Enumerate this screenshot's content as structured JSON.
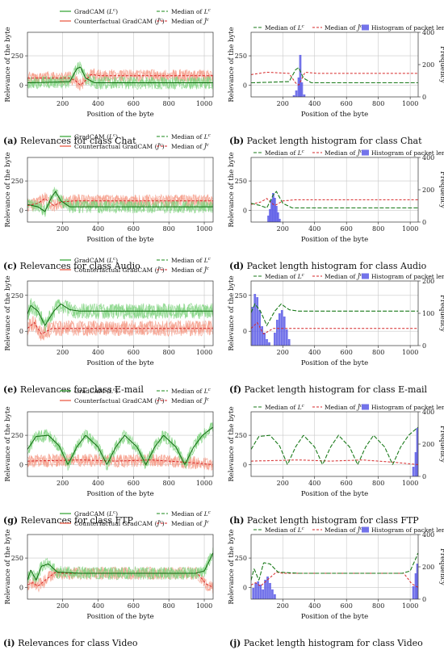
{
  "colors": {
    "gradcam": "#2ca02c",
    "gradcam_band": "#7fd37f",
    "counterfactual": "#e8503a",
    "counterfactual_band": "#f59a86",
    "median_green": "#1a8a1a",
    "median_red": "#d62728",
    "histogram": "#5b5be6",
    "grid": "#c8c8c8"
  },
  "legend": {
    "gradcam": "GradCAM (L^c)",
    "counterfactual": "Counterfactual GradCAM (Ĵ^c)",
    "median_lc": "Median of L^c",
    "median_hat": "Median of Ĵ^c",
    "histogram": "Histogram of packet length"
  },
  "axes": {
    "xlabel": "Position of the byte",
    "ylabel": "Relevance of the byte",
    "y2label": "Frequency"
  },
  "captions": [
    {
      "id": "a",
      "letter": "(a)",
      "text": " Relevances for class Chat"
    },
    {
      "id": "b",
      "letter": "(b)",
      "text": " Packet length histogram for class Chat"
    },
    {
      "id": "c",
      "letter": "(c)",
      "text": " Relevances for class Audio"
    },
    {
      "id": "d",
      "letter": "(d)",
      "text": " Packet length histogram for class Audio"
    },
    {
      "id": "e",
      "letter": "(e)",
      "text": " Relevances for class E-mail"
    },
    {
      "id": "f",
      "letter": "(f)",
      "text": " Packet length histogram for class E-mail"
    },
    {
      "id": "g",
      "letter": "(g)",
      "text": " Relevances for class FTP"
    },
    {
      "id": "h",
      "letter": "(h)",
      "text": " Packet length histogram for class FTP"
    },
    {
      "id": "i",
      "letter": "(i)",
      "text": " Relevances for class Video"
    },
    {
      "id": "j",
      "letter": "(j)",
      "text": " Packet length histogram for class Video"
    }
  ],
  "chart_data": [
    {
      "id": "a",
      "type": "line",
      "class": "Chat",
      "xlim": [
        1,
        1050
      ],
      "ylim": [
        -100,
        450
      ],
      "xticks": [
        200,
        400,
        600,
        800,
        1000
      ],
      "yticks": [
        0,
        250
      ],
      "gradcam_median": [
        [
          1,
          20
        ],
        [
          150,
          25
        ],
        [
          240,
          30
        ],
        [
          280,
          140
        ],
        [
          300,
          155
        ],
        [
          330,
          60
        ],
        [
          380,
          20
        ],
        [
          1050,
          20
        ]
      ],
      "counterfactual_median": [
        [
          1,
          60
        ],
        [
          240,
          60
        ],
        [
          270,
          40
        ],
        [
          300,
          0
        ],
        [
          330,
          40
        ],
        [
          360,
          90
        ],
        [
          420,
          80
        ],
        [
          1050,
          80
        ]
      ]
    },
    {
      "id": "b",
      "type": "histogram",
      "class": "Chat",
      "xlim": [
        1,
        1050
      ],
      "ylim": [
        -100,
        450
      ],
      "y2lim": [
        0,
        400
      ],
      "xticks": [
        200,
        400,
        600,
        800,
        1000
      ],
      "yticks": [
        0,
        250
      ],
      "y2ticks": [
        0,
        200,
        400
      ],
      "bins": [
        [
          270,
          10
        ],
        [
          285,
          40
        ],
        [
          300,
          120
        ],
        [
          310,
          260
        ],
        [
          320,
          90
        ],
        [
          335,
          15
        ]
      ],
      "median_lc": [
        [
          1,
          20
        ],
        [
          240,
          30
        ],
        [
          280,
          130
        ],
        [
          300,
          150
        ],
        [
          330,
          60
        ],
        [
          380,
          20
        ],
        [
          1050,
          20
        ]
      ],
      "median_hat": [
        [
          1,
          90
        ],
        [
          100,
          110
        ],
        [
          240,
          100
        ],
        [
          280,
          20
        ],
        [
          300,
          0
        ],
        [
          340,
          110
        ],
        [
          420,
          100
        ],
        [
          1050,
          100
        ]
      ]
    },
    {
      "id": "c",
      "type": "line",
      "class": "Audio",
      "xlim": [
        1,
        1050
      ],
      "ylim": [
        -100,
        450
      ],
      "xticks": [
        200,
        400,
        600,
        800,
        1000
      ],
      "yticks": [
        0,
        250
      ],
      "gradcam_median": [
        [
          1,
          50
        ],
        [
          60,
          30
        ],
        [
          100,
          -10
        ],
        [
          140,
          120
        ],
        [
          160,
          160
        ],
        [
          190,
          80
        ],
        [
          240,
          30
        ],
        [
          1050,
          30
        ]
      ],
      "counterfactual_median": [
        [
          1,
          40
        ],
        [
          60,
          60
        ],
        [
          100,
          100
        ],
        [
          150,
          40
        ],
        [
          190,
          70
        ],
        [
          260,
          80
        ],
        [
          1050,
          80
        ]
      ]
    },
    {
      "id": "d",
      "type": "histogram",
      "class": "Audio",
      "xlim": [
        1,
        1050
      ],
      "ylim": [
        -100,
        450
      ],
      "y2lim": [
        0,
        400
      ],
      "xticks": [
        200,
        400,
        600,
        800,
        1000
      ],
      "yticks": [
        0,
        250
      ],
      "y2ticks": [
        0,
        200,
        400
      ],
      "bins": [
        [
          110,
          40
        ],
        [
          120,
          80
        ],
        [
          130,
          140
        ],
        [
          140,
          180
        ],
        [
          150,
          150
        ],
        [
          160,
          100
        ],
        [
          170,
          60
        ],
        [
          180,
          20
        ]
      ],
      "median_lc": [
        [
          1,
          60
        ],
        [
          60,
          40
        ],
        [
          100,
          20
        ],
        [
          140,
          130
        ],
        [
          160,
          160
        ],
        [
          200,
          60
        ],
        [
          260,
          20
        ],
        [
          1050,
          20
        ]
      ],
      "median_hat": [
        [
          1,
          50
        ],
        [
          60,
          70
        ],
        [
          100,
          100
        ],
        [
          150,
          40
        ],
        [
          200,
          80
        ],
        [
          280,
          90
        ],
        [
          1050,
          90
        ]
      ]
    },
    {
      "id": "e",
      "type": "line",
      "class": "E-mail",
      "xlim": [
        1,
        1050
      ],
      "ylim": [
        -100,
        350
      ],
      "xticks": [
        200,
        400,
        600,
        800,
        1000
      ],
      "yticks": [
        0,
        250
      ],
      "gradcam_median": [
        [
          1,
          120
        ],
        [
          20,
          180
        ],
        [
          60,
          140
        ],
        [
          100,
          40
        ],
        [
          150,
          140
        ],
        [
          190,
          190
        ],
        [
          240,
          150
        ],
        [
          300,
          140
        ],
        [
          1050,
          140
        ]
      ],
      "counterfactual_median": [
        [
          1,
          20
        ],
        [
          40,
          60
        ],
        [
          80,
          -20
        ],
        [
          140,
          20
        ],
        [
          200,
          20
        ],
        [
          1050,
          20
        ]
      ]
    },
    {
      "id": "f",
      "type": "histogram",
      "class": "E-mail",
      "xlim": [
        1,
        1050
      ],
      "ylim": [
        -100,
        350
      ],
      "y2lim": [
        0,
        200
      ],
      "xticks": [
        200,
        400,
        600,
        800,
        1000
      ],
      "yticks": [
        0,
        250
      ],
      "y2ticks": [
        0,
        100,
        200
      ],
      "bins": [
        [
          10,
          120
        ],
        [
          25,
          160
        ],
        [
          40,
          150
        ],
        [
          55,
          110
        ],
        [
          70,
          60
        ],
        [
          85,
          40
        ],
        [
          100,
          20
        ],
        [
          115,
          10
        ],
        [
          150,
          40
        ],
        [
          165,
          80
        ],
        [
          180,
          100
        ],
        [
          195,
          110
        ],
        [
          210,
          90
        ],
        [
          225,
          50
        ],
        [
          240,
          20
        ]
      ],
      "median_lc": [
        [
          1,
          130
        ],
        [
          25,
          190
        ],
        [
          60,
          140
        ],
        [
          100,
          40
        ],
        [
          150,
          140
        ],
        [
          190,
          190
        ],
        [
          240,
          150
        ],
        [
          300,
          140
        ],
        [
          1050,
          140
        ]
      ],
      "median_hat": [
        [
          1,
          20
        ],
        [
          40,
          60
        ],
        [
          80,
          -20
        ],
        [
          140,
          20
        ],
        [
          200,
          20
        ],
        [
          1050,
          20
        ]
      ]
    },
    {
      "id": "g",
      "type": "line",
      "class": "FTP",
      "xlim": [
        1,
        1050
      ],
      "ylim": [
        -100,
        450
      ],
      "xticks": [
        200,
        400,
        600,
        800,
        1000
      ],
      "yticks": [
        0,
        250
      ],
      "gradcam_median": [
        [
          1,
          130
        ],
        [
          50,
          240
        ],
        [
          120,
          250
        ],
        [
          180,
          160
        ],
        [
          230,
          0
        ],
        [
          280,
          150
        ],
        [
          330,
          250
        ],
        [
          400,
          150
        ],
        [
          450,
          0
        ],
        [
          500,
          150
        ],
        [
          550,
          250
        ],
        [
          620,
          150
        ],
        [
          670,
          0
        ],
        [
          720,
          150
        ],
        [
          770,
          250
        ],
        [
          840,
          150
        ],
        [
          890,
          0
        ],
        [
          940,
          150
        ],
        [
          990,
          250
        ],
        [
          1050,
          320
        ]
      ],
      "counterfactual_median": [
        [
          1,
          30
        ],
        [
          300,
          40
        ],
        [
          500,
          30
        ],
        [
          700,
          40
        ],
        [
          900,
          20
        ],
        [
          1050,
          0
        ]
      ]
    },
    {
      "id": "h",
      "type": "histogram",
      "class": "FTP",
      "xlim": [
        1,
        1050
      ],
      "ylim": [
        -100,
        450
      ],
      "y2lim": [
        0,
        400
      ],
      "xticks": [
        200,
        400,
        600,
        800,
        1000
      ],
      "yticks": [
        0,
        250
      ],
      "y2ticks": [
        0,
        200,
        400
      ],
      "bins": [
        [
          1020,
          60
        ],
        [
          1035,
          150
        ],
        [
          1045,
          300
        ]
      ],
      "median_lc": [
        [
          1,
          130
        ],
        [
          50,
          240
        ],
        [
          120,
          250
        ],
        [
          180,
          160
        ],
        [
          230,
          0
        ],
        [
          280,
          150
        ],
        [
          330,
          250
        ],
        [
          400,
          150
        ],
        [
          450,
          0
        ],
        [
          500,
          150
        ],
        [
          550,
          250
        ],
        [
          620,
          150
        ],
        [
          670,
          0
        ],
        [
          720,
          150
        ],
        [
          770,
          250
        ],
        [
          840,
          150
        ],
        [
          890,
          0
        ],
        [
          940,
          150
        ],
        [
          990,
          250
        ],
        [
          1050,
          320
        ]
      ],
      "median_hat": [
        [
          1,
          30
        ],
        [
          300,
          40
        ],
        [
          500,
          30
        ],
        [
          700,
          40
        ],
        [
          900,
          20
        ],
        [
          1050,
          0
        ]
      ]
    },
    {
      "id": "i",
      "type": "line",
      "class": "Video",
      "xlim": [
        1,
        1050
      ],
      "ylim": [
        -100,
        450
      ],
      "xticks": [
        200,
        400,
        600,
        800,
        1000
      ],
      "yticks": [
        0,
        250
      ],
      "gradcam_median": [
        [
          1,
          60
        ],
        [
          20,
          150
        ],
        [
          50,
          60
        ],
        [
          80,
          180
        ],
        [
          120,
          200
        ],
        [
          170,
          130
        ],
        [
          300,
          120
        ],
        [
          950,
          120
        ],
        [
          1000,
          140
        ],
        [
          1040,
          260
        ],
        [
          1050,
          300
        ]
      ],
      "counterfactual_median": [
        [
          1,
          20
        ],
        [
          30,
          40
        ],
        [
          60,
          10
        ],
        [
          100,
          60
        ],
        [
          160,
          130
        ],
        [
          200,
          120
        ],
        [
          960,
          120
        ],
        [
          1010,
          30
        ],
        [
          1050,
          0
        ]
      ]
    },
    {
      "id": "j",
      "type": "histogram",
      "class": "Video",
      "xlim": [
        1,
        1050
      ],
      "ylim": [
        -100,
        450
      ],
      "y2lim": [
        0,
        400
      ],
      "xticks": [
        200,
        400,
        600,
        800,
        1000
      ],
      "yticks": [
        0,
        250
      ],
      "y2ticks": [
        0,
        200,
        400
      ],
      "bins": [
        [
          15,
          70
        ],
        [
          30,
          100
        ],
        [
          45,
          110
        ],
        [
          60,
          90
        ],
        [
          75,
          60
        ],
        [
          90,
          120
        ],
        [
          105,
          140
        ],
        [
          120,
          100
        ],
        [
          135,
          60
        ],
        [
          150,
          30
        ],
        [
          1020,
          80
        ],
        [
          1035,
          160
        ],
        [
          1045,
          220
        ]
      ],
      "median_lc": [
        [
          1,
          60
        ],
        [
          20,
          160
        ],
        [
          50,
          60
        ],
        [
          80,
          210
        ],
        [
          120,
          200
        ],
        [
          170,
          130
        ],
        [
          300,
          120
        ],
        [
          950,
          120
        ],
        [
          1000,
          140
        ],
        [
          1040,
          260
        ],
        [
          1050,
          300
        ]
      ],
      "median_hat": [
        [
          1,
          20
        ],
        [
          30,
          40
        ],
        [
          60,
          10
        ],
        [
          100,
          60
        ],
        [
          160,
          130
        ],
        [
          200,
          120
        ],
        [
          960,
          120
        ],
        [
          1010,
          30
        ],
        [
          1050,
          0
        ]
      ]
    }
  ]
}
